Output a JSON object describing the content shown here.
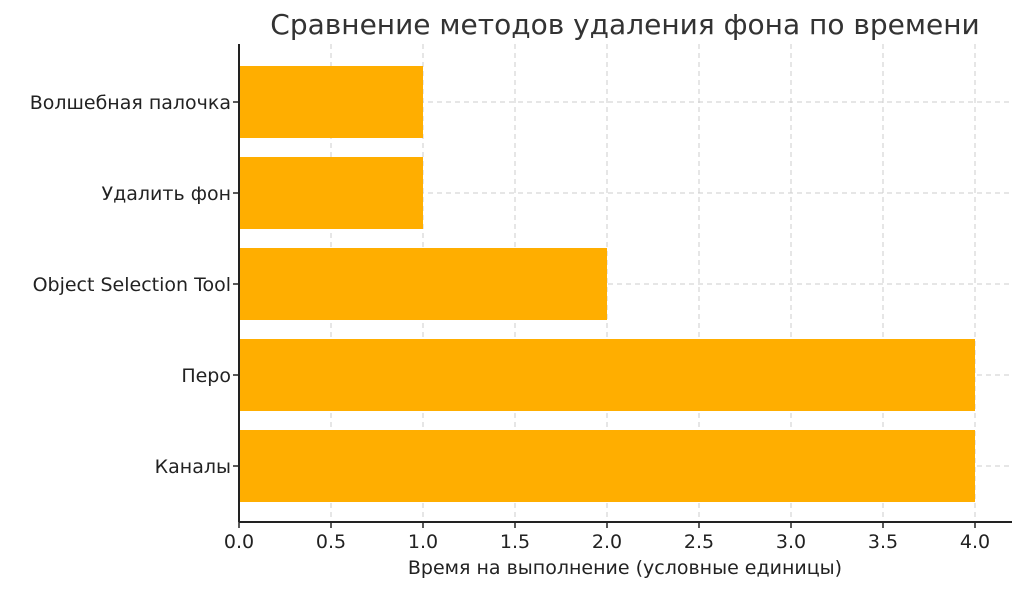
{
  "chart_data": {
    "type": "bar",
    "orientation": "horizontal",
    "title": "Сравнение методов удаления фона по времени",
    "xlabel": "Время на выполнение (условные единицы)",
    "ylabel": "",
    "categories": [
      "Волшебная палочка",
      "Удалить фон",
      "Object Selection Tool",
      "Перо",
      "Каналы"
    ],
    "values": [
      1,
      1,
      2,
      4,
      4
    ],
    "xlim": [
      0,
      4.2
    ],
    "xticks": [
      "0.0",
      "0.5",
      "1.0",
      "1.5",
      "2.0",
      "2.5",
      "3.0",
      "3.5",
      "4.0"
    ],
    "grid": true,
    "bar_color": "#FFAE00"
  }
}
